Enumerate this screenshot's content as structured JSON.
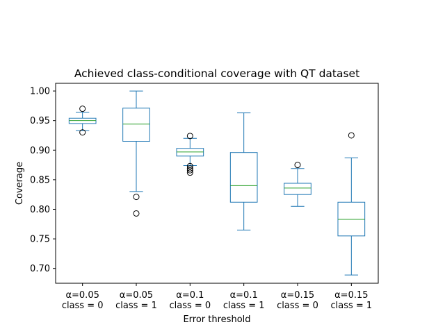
{
  "chart_data": {
    "type": "box",
    "title": "Achieved class-conditional coverage with QT dataset",
    "xlabel": "Error threshold",
    "ylabel": "Coverage",
    "categories": [
      [
        "α=0.05",
        "class = 0"
      ],
      [
        "α=0.05",
        "class = 1"
      ],
      [
        "α=0.1",
        "class = 0"
      ],
      [
        "α=0.1",
        "class = 1"
      ],
      [
        "α=0.15",
        "class = 0"
      ],
      [
        "α=0.15",
        "class = 1"
      ]
    ],
    "ylim": [
      0.675,
      1.013
    ],
    "yticks": [
      0.7,
      0.75,
      0.8,
      0.85,
      0.9,
      0.95,
      1.0
    ],
    "ytick_labels": [
      "0.70",
      "0.75",
      "0.80",
      "0.85",
      "0.90",
      "0.95",
      "1.00"
    ],
    "grid": false,
    "boxes": [
      {
        "whislo": 0.933,
        "q1": 0.945,
        "med": 0.95,
        "q3": 0.954,
        "whishi": 0.964,
        "fliers": [
          0.97,
          0.93
        ]
      },
      {
        "whislo": 0.83,
        "q1": 0.915,
        "med": 0.944,
        "q3": 0.971,
        "whishi": 1.0,
        "fliers": [
          0.821,
          0.793
        ]
      },
      {
        "whislo": 0.874,
        "q1": 0.89,
        "med": 0.897,
        "q3": 0.903,
        "whishi": 0.92,
        "fliers": [
          0.924,
          0.873,
          0.869,
          0.866,
          0.862
        ]
      },
      {
        "whislo": 0.765,
        "q1": 0.812,
        "med": 0.84,
        "q3": 0.896,
        "whishi": 0.963,
        "fliers": []
      },
      {
        "whislo": 0.805,
        "q1": 0.825,
        "med": 0.836,
        "q3": 0.844,
        "whishi": 0.869,
        "fliers": [
          0.875
        ]
      },
      {
        "whislo": 0.689,
        "q1": 0.755,
        "med": 0.783,
        "q3": 0.812,
        "whishi": 0.887,
        "fliers": [
          0.925
        ]
      }
    ],
    "colors": {
      "box": "#1f77b4",
      "median": "#2ca02c",
      "flier": "#000000",
      "axes": "#000000"
    }
  }
}
